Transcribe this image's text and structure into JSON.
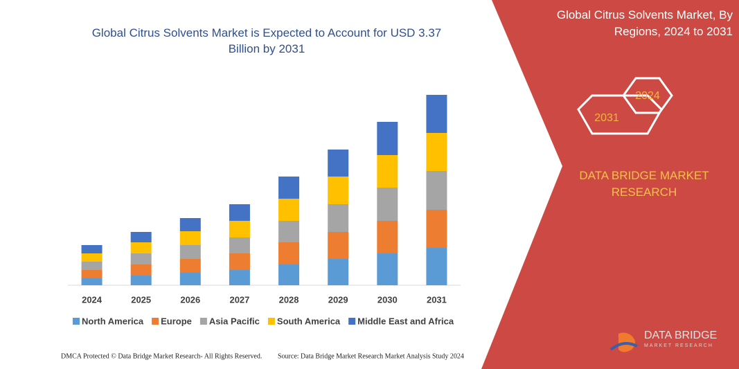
{
  "chart_data": {
    "type": "stacked-bar",
    "title": "Global Citrus Solvents Market is Expected to Account for USD 3.37 Billion by 2031",
    "categories": [
      "2024",
      "2025",
      "2026",
      "2027",
      "2028",
      "2029",
      "2030",
      "2031"
    ],
    "series": [
      {
        "name": "North America",
        "color": "#5b9bd5",
        "values": [
          10,
          14,
          18,
          22,
          30,
          38,
          46,
          54
        ]
      },
      {
        "name": "Europe",
        "color": "#ed7d31",
        "values": [
          12,
          16,
          20,
          24,
          32,
          39,
          47,
          55
        ]
      },
      {
        "name": "Asia Pacific",
        "color": "#a5a5a5",
        "values": [
          12,
          16,
          20,
          23,
          31,
          40,
          48,
          56
        ]
      },
      {
        "name": "South America",
        "color": "#ffc000",
        "values": [
          12,
          16,
          20,
          24,
          32,
          40,
          47,
          55
        ]
      },
      {
        "name": "Middle East and Africa",
        "color": "#4472c4",
        "values": [
          12,
          15,
          19,
          24,
          32,
          39,
          48,
          55
        ]
      }
    ],
    "ylim": [
      0,
      280
    ]
  },
  "panel": {
    "title": "Global Citrus Solvents Market, By Regions, 2024 to 2031",
    "hexagons": [
      "2024",
      "2031"
    ],
    "brand": "DATA BRIDGE MARKET RESEARCH"
  },
  "logo": {
    "name": "DATA BRIDGE",
    "tagline": "MARKET RESEARCH"
  },
  "footer": {
    "left": "DMCA Protected © Data Bridge Market Research- All Rights Reserved.",
    "right": "Source: Data Bridge Market Research Market Analysis Study 2024"
  }
}
